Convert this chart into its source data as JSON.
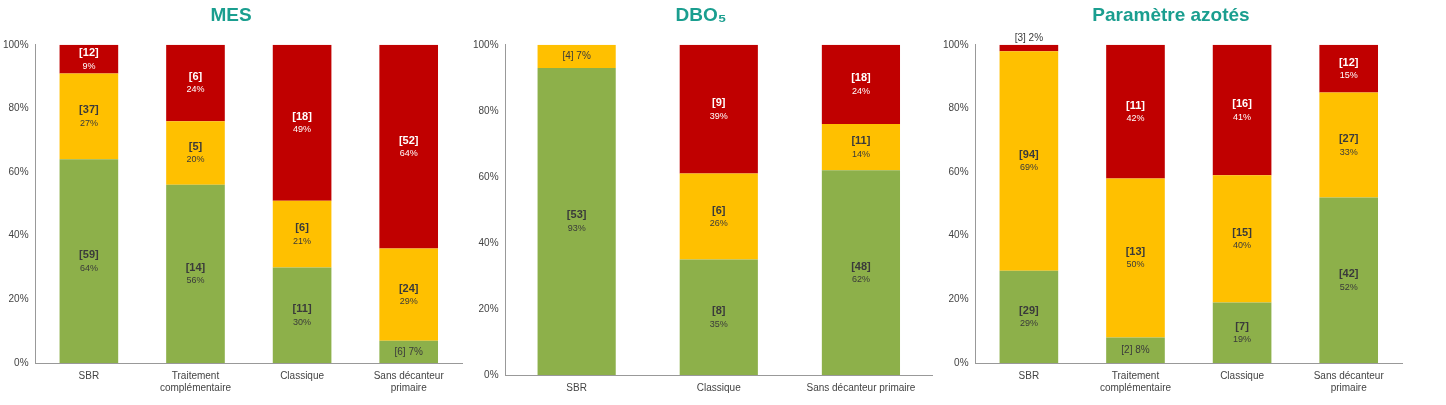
{
  "chart_data": [
    {
      "type": "bar",
      "title": "MES",
      "categories": [
        "SBR",
        "Traitement complémentaire",
        "Classique",
        "Sans décanteur primaire"
      ],
      "stacked": true,
      "ylim": [
        0,
        100
      ],
      "yticks": [
        {
          "value": 0,
          "label": "0%"
        },
        {
          "value": 20,
          "label": "20%"
        },
        {
          "value": 40,
          "label": "40%"
        },
        {
          "value": 60,
          "label": "60%"
        },
        {
          "value": 80,
          "label": "80%"
        },
        {
          "value": 100,
          "label": "100%"
        }
      ],
      "grid": false,
      "legend": false,
      "series": [
        {
          "color": "#8db04a",
          "values": [
            64,
            56,
            30,
            7
          ],
          "value_labels": [
            "[59] 64%",
            "[14] 56%",
            "[11] 30%",
            "[6] 7%"
          ]
        },
        {
          "color": "#ffc000",
          "values": [
            27,
            20,
            21,
            29
          ],
          "value_labels": [
            "[37] 27%",
            "[5] 20%",
            "[6] 21%",
            "[24] 29%"
          ]
        },
        {
          "color": "#c00000",
          "values": [
            9,
            24,
            49,
            64
          ],
          "value_labels": [
            "[12] 9%",
            "[6] 24%",
            "[18] 49%",
            "[52] 64%"
          ]
        }
      ]
    },
    {
      "type": "bar",
      "title": "DBO₅",
      "categories": [
        "SBR",
        "Classique",
        "Sans décanteur primaire"
      ],
      "stacked": true,
      "ylim": [
        0,
        100
      ],
      "yticks": [
        {
          "value": 0,
          "label": "0%"
        },
        {
          "value": 20,
          "label": "20%"
        },
        {
          "value": 40,
          "label": "40%"
        },
        {
          "value": 60,
          "label": "60%"
        },
        {
          "value": 80,
          "label": "80%"
        },
        {
          "value": 100,
          "label": "100%"
        }
      ],
      "grid": false,
      "legend": false,
      "series": [
        {
          "color": "#8db04a",
          "values": [
            93,
            35,
            62
          ],
          "value_labels": [
            "[53] 93%",
            "[8] 35%",
            "[48] 62%"
          ]
        },
        {
          "color": "#ffc000",
          "values": [
            7,
            26,
            14
          ],
          "value_labels": [
            "[4] 7%",
            "[6] 26%",
            "[11] 14%"
          ]
        },
        {
          "color": "#c00000",
          "values": [
            0,
            39,
            24
          ],
          "value_labels": [
            null,
            "[9] 39%",
            "[18] 24%"
          ]
        }
      ]
    },
    {
      "type": "bar",
      "title": "Paramètre azotés",
      "categories": [
        "SBR",
        "Traitement complémentaire",
        "Classique",
        "Sans décanteur primaire"
      ],
      "stacked": true,
      "ylim": [
        0,
        100
      ],
      "yticks": [
        {
          "value": 0,
          "label": "0%"
        },
        {
          "value": 20,
          "label": "20%"
        },
        {
          "value": 40,
          "label": "40%"
        },
        {
          "value": 60,
          "label": "60%"
        },
        {
          "value": 80,
          "label": "80%"
        },
        {
          "value": 100,
          "label": "100%"
        }
      ],
      "grid": false,
      "legend": false,
      "series": [
        {
          "color": "#8db04a",
          "values": [
            29,
            8,
            19,
            52
          ],
          "value_labels": [
            "[29] 29%",
            "[2] 8%",
            "[7] 19%",
            "[42] 52%"
          ]
        },
        {
          "color": "#ffc000",
          "values": [
            69,
            50,
            40,
            33
          ],
          "value_labels": [
            "[94] 69%",
            "[13] 50%",
            "[15] 40%",
            "[27] 33%"
          ]
        },
        {
          "color": "#c00000",
          "values": [
            2,
            42,
            41,
            15
          ],
          "value_labels": [
            "[3] 2%",
            "[11] 42%",
            "[16] 41%",
            "[12] 15%"
          ]
        }
      ]
    }
  ]
}
